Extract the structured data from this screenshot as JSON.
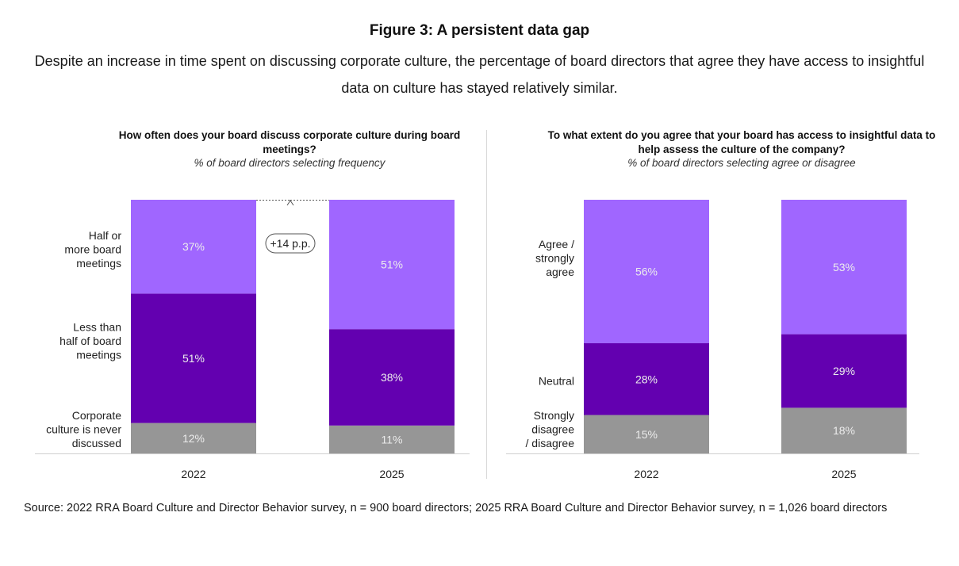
{
  "figure": {
    "title": "Figure 3: A persistent data gap",
    "subtitle": "Despite an increase in time spent on discussing corporate culture, the percentage of board directors that agree they have access to insightful data on culture has stayed relatively similar."
  },
  "source": "Source: 2022 RRA Board Culture and Director Behavior survey, n = 900 board directors; 2025 RRA Board Culture and Director Behavior survey, n = 1,026 board directors",
  "colors": {
    "light": "#A066FF",
    "dark": "#6300B0",
    "gray": "#969696"
  },
  "chart_data": [
    {
      "type": "bar",
      "stacked": true,
      "title": "How often does your board discuss corporate culture during board meetings?",
      "subtitle": "% of board directors selecting frequency",
      "categories": [
        "2022",
        "2025"
      ],
      "series": [
        {
          "name": "Corporate culture is never discussed",
          "label_lines": [
            "Corporate",
            "culture is never",
            "discussed"
          ],
          "color": "#969696",
          "values": [
            12,
            11
          ]
        },
        {
          "name": "Less than half of board meetings",
          "label_lines": [
            "Less than",
            "half of board",
            "meetings"
          ],
          "color": "#6300B0",
          "values": [
            51,
            38
          ]
        },
        {
          "name": "Half or more board meetings",
          "label_lines": [
            "Half or",
            "more board",
            "meetings"
          ],
          "color": "#A066FF",
          "values": [
            37,
            51
          ]
        }
      ],
      "annotation": "+14 p.p.",
      "ylim": [
        0,
        100
      ]
    },
    {
      "type": "bar",
      "stacked": true,
      "title": "To what extent do you agree that your board has access to insightful data to help assess the culture of the company?",
      "subtitle": "% of board directors selecting agree or disagree",
      "categories": [
        "2022",
        "2025"
      ],
      "series": [
        {
          "name": "Strongly disagree / disagree",
          "label_lines": [
            "Strongly",
            "disagree",
            "/ disagree"
          ],
          "color": "#969696",
          "values": [
            15,
            18
          ]
        },
        {
          "name": "Neutral",
          "label_lines": [
            "Neutral"
          ],
          "color": "#6300B0",
          "values": [
            28,
            29
          ]
        },
        {
          "name": "Agree / strongly agree",
          "label_lines": [
            "Agree /",
            "strongly",
            "agree"
          ],
          "color": "#A066FF",
          "values": [
            56,
            53
          ]
        }
      ],
      "ylim": [
        0,
        100
      ]
    }
  ]
}
